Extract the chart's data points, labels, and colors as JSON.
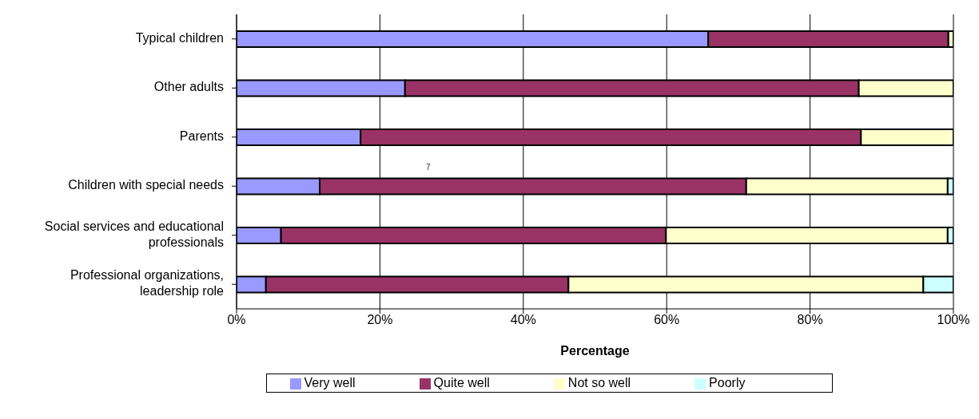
{
  "chart_data": {
    "type": "bar",
    "orientation": "horizontal",
    "stacked": true,
    "xlabel": "Percentage",
    "categories": [
      "Typical children",
      "Other adults",
      "Parents",
      "Children with special needs",
      "Social services and educational professionals",
      "Professional organizations, leadership role"
    ],
    "series": [
      {
        "name": "Very well",
        "color": "#9999ff",
        "values": [
          65.8,
          23.5,
          17.3,
          11.6,
          6.2,
          4.1
        ]
      },
      {
        "name": "Quite well",
        "color": "#993366",
        "values": [
          33.5,
          63.3,
          69.8,
          59.5,
          53.7,
          42.2
        ]
      },
      {
        "name": "Not so well",
        "color": "#ffffcc",
        "values": [
          0.7,
          13.2,
          12.9,
          28.1,
          39.3,
          49.5
        ]
      },
      {
        "name": "Poorly",
        "color": "#ccffff",
        "values": [
          0,
          0,
          0,
          0.8,
          0.8,
          4.2
        ]
      }
    ],
    "xlim": [
      0,
      100
    ],
    "xticks": [
      {
        "value": 0,
        "label": "0%"
      },
      {
        "value": 20,
        "label": "20%"
      },
      {
        "value": 40,
        "label": "40%"
      },
      {
        "value": 60,
        "label": "60%"
      },
      {
        "value": 80,
        "label": "80%"
      },
      {
        "value": 100,
        "label": "100%"
      }
    ],
    "annotations": [
      "7"
    ],
    "grid": "x",
    "legend": "bottom"
  }
}
